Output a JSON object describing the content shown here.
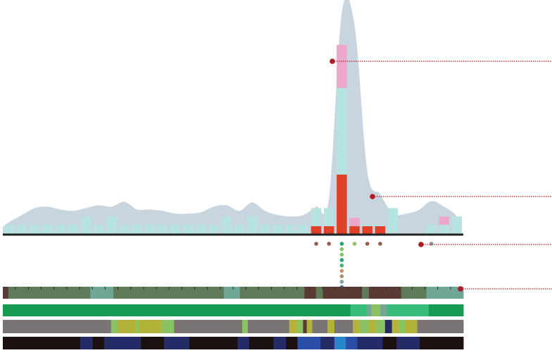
{
  "colors": {
    "density": "#c9d5de",
    "base_bar": "#b7e3e0",
    "mid_bar": "#eba8cc",
    "high_bar": "#e04028",
    "axis": "#222222",
    "pointer": "#b01c24",
    "track_brown": "#5a3a34",
    "track_green_dark": "#5e7a58",
    "track_teal": "#6fa696",
    "track_green": "#159a52",
    "track_green_light": "#38bd78",
    "track_grey": "#7a7474",
    "track_olive": "#b3b239",
    "track_lime": "#8ac264",
    "track_black": "#1b1111",
    "track_navy": "#252b66",
    "track_blue": "#2a4ea6",
    "track_sky": "#2a86c8"
  },
  "chart_data": {
    "type": "bar",
    "title": "",
    "xlabel": "",
    "ylabel": "",
    "grid": false,
    "legend": "none",
    "ylim": [
      0,
      320
    ],
    "n_bins": 36,
    "density_curve": [
      18,
      28,
      38,
      40,
      36,
      34,
      38,
      42,
      40,
      47,
      36,
      36,
      34,
      30,
      30,
      32,
      40,
      42,
      34,
      46,
      34,
      28,
      26,
      28,
      40,
      52,
      318,
      300,
      90,
      58,
      30,
      30,
      35,
      48,
      40,
      26
    ],
    "series": [
      {
        "name": "",
        "color_key": "base_bar",
        "values": [
          14,
          14,
          14,
          14,
          14,
          14,
          26,
          14,
          26,
          14,
          14,
          14,
          14,
          14,
          14,
          14,
          14,
          26,
          14,
          26,
          14,
          14,
          14,
          14,
          38,
          38,
          210,
          12,
          14,
          14,
          38,
          0,
          0,
          14,
          14,
          26
        ]
      },
      {
        "name": "",
        "color_key": "mid_bar",
        "values": [
          0,
          0,
          0,
          0,
          0,
          0,
          0,
          0,
          0,
          0,
          0,
          0,
          0,
          0,
          0,
          0,
          0,
          0,
          0,
          0,
          0,
          0,
          0,
          0,
          0,
          0,
          62,
          12,
          0,
          0,
          0,
          0,
          0,
          0,
          12,
          0
        ]
      },
      {
        "name": "",
        "color_key": "high_bar",
        "values": [
          0,
          0,
          0,
          0,
          0,
          0,
          0,
          0,
          0,
          0,
          0,
          0,
          0,
          0,
          0,
          0,
          0,
          0,
          0,
          0,
          0,
          0,
          0,
          0,
          12,
          12,
          86,
          12,
          12,
          12,
          0,
          0,
          0,
          0,
          0,
          0
        ]
      }
    ],
    "dot_markers": [
      {
        "bin": 24,
        "colors": [
          "#9a5a4a"
        ]
      },
      {
        "bin": 25,
        "colors": [
          "#9a5a4a"
        ]
      },
      {
        "bin": 26,
        "colors": [
          "#22a86a",
          "#8ac264",
          "#8ac264",
          "#22a86a",
          "#3cb878",
          "#c89468",
          "#b0926c",
          "#8aa09a",
          "#3a82b0"
        ]
      },
      {
        "bin": 27,
        "colors": [
          "#8ac264"
        ]
      },
      {
        "bin": 28,
        "colors": [
          "#9a5a4a"
        ]
      },
      {
        "bin": 29,
        "colors": [
          "#9a5a4a"
        ]
      },
      {
        "bin": 33,
        "colors": [
          "#7f9a8e"
        ]
      }
    ],
    "tracks": [
      {
        "segments": [
          {
            "f0": 0,
            "f1": 0.012,
            "c": "track_brown"
          },
          {
            "f0": 0.012,
            "f1": 0.19,
            "c": "track_green_dark"
          },
          {
            "f0": 0.19,
            "f1": 0.24,
            "c": "track_teal"
          },
          {
            "f0": 0.24,
            "f1": 0.48,
            "c": "track_green_dark"
          },
          {
            "f0": 0.48,
            "f1": 0.515,
            "c": "track_teal"
          },
          {
            "f0": 0.515,
            "f1": 0.655,
            "c": "track_green_dark"
          },
          {
            "f0": 0.655,
            "f1": 0.68,
            "c": "track_brown"
          },
          {
            "f0": 0.68,
            "f1": 0.695,
            "c": "track_green_dark"
          },
          {
            "f0": 0.695,
            "f1": 0.78,
            "c": "track_brown"
          },
          {
            "f0": 0.78,
            "f1": 0.795,
            "c": "track_green_dark"
          },
          {
            "f0": 0.795,
            "f1": 0.865,
            "c": "track_brown"
          },
          {
            "f0": 0.865,
            "f1": 0.92,
            "c": "track_green_dark"
          },
          {
            "f0": 0.92,
            "f1": 1,
            "c": "track_teal"
          }
        ]
      },
      {
        "segments": [
          {
            "f0": 0,
            "f1": 0.755,
            "c": "track_green"
          },
          {
            "f0": 0.755,
            "f1": 0.79,
            "c": "track_green_light"
          },
          {
            "f0": 0.79,
            "f1": 0.8,
            "c": "track_teal"
          },
          {
            "f0": 0.8,
            "f1": 0.82,
            "c": "track_lime"
          },
          {
            "f0": 0.82,
            "f1": 0.835,
            "c": "track_teal"
          },
          {
            "f0": 0.835,
            "f1": 0.925,
            "c": "track_green_light"
          },
          {
            "f0": 0.925,
            "f1": 1,
            "c": "track_green"
          }
        ]
      },
      {
        "segments": [
          {
            "f0": 0,
            "f1": 0.235,
            "c": "track_grey"
          },
          {
            "f0": 0.235,
            "f1": 0.25,
            "c": "track_lime"
          },
          {
            "f0": 0.25,
            "f1": 0.29,
            "c": "track_olive"
          },
          {
            "f0": 0.29,
            "f1": 0.295,
            "c": "track_lime"
          },
          {
            "f0": 0.295,
            "f1": 0.345,
            "c": "track_olive"
          },
          {
            "f0": 0.345,
            "f1": 0.372,
            "c": "track_lime"
          },
          {
            "f0": 0.372,
            "f1": 0.52,
            "c": "track_grey"
          },
          {
            "f0": 0.52,
            "f1": 0.532,
            "c": "track_lime"
          },
          {
            "f0": 0.532,
            "f1": 0.622,
            "c": "track_grey"
          },
          {
            "f0": 0.622,
            "f1": 0.64,
            "c": "track_olive"
          },
          {
            "f0": 0.64,
            "f1": 0.652,
            "c": "track_lime"
          },
          {
            "f0": 0.652,
            "f1": 0.66,
            "c": "track_brown"
          },
          {
            "f0": 0.66,
            "f1": 0.672,
            "c": "track_olive"
          },
          {
            "f0": 0.672,
            "f1": 0.705,
            "c": "track_grey"
          },
          {
            "f0": 0.705,
            "f1": 0.72,
            "c": "track_olive"
          },
          {
            "f0": 0.72,
            "f1": 0.76,
            "c": "track_grey"
          },
          {
            "f0": 0.76,
            "f1": 0.775,
            "c": "track_olive"
          },
          {
            "f0": 0.775,
            "f1": 0.795,
            "c": "track_lime"
          },
          {
            "f0": 0.795,
            "f1": 0.81,
            "c": "track_olive"
          },
          {
            "f0": 0.81,
            "f1": 0.83,
            "c": "track_lime"
          },
          {
            "f0": 0.83,
            "f1": 0.845,
            "c": "track_navy"
          },
          {
            "f0": 0.845,
            "f1": 0.86,
            "c": "track_olive"
          },
          {
            "f0": 0.86,
            "f1": 0.875,
            "c": "track_lime"
          },
          {
            "f0": 0.875,
            "f1": 0.9,
            "c": "track_olive"
          },
          {
            "f0": 0.9,
            "f1": 1,
            "c": "track_grey"
          }
        ]
      },
      {
        "segments": [
          {
            "f0": 0,
            "f1": 0.168,
            "c": "track_black"
          },
          {
            "f0": 0.168,
            "f1": 0.195,
            "c": "track_navy"
          },
          {
            "f0": 0.195,
            "f1": 0.22,
            "c": "track_black"
          },
          {
            "f0": 0.22,
            "f1": 0.3,
            "c": "track_navy"
          },
          {
            "f0": 0.3,
            "f1": 0.35,
            "c": "track_black"
          },
          {
            "f0": 0.35,
            "f1": 0.405,
            "c": "track_navy"
          },
          {
            "f0": 0.405,
            "f1": 0.51,
            "c": "track_black"
          },
          {
            "f0": 0.51,
            "f1": 0.535,
            "c": "track_navy"
          },
          {
            "f0": 0.535,
            "f1": 0.588,
            "c": "track_black"
          },
          {
            "f0": 0.588,
            "f1": 0.615,
            "c": "track_navy"
          },
          {
            "f0": 0.615,
            "f1": 0.64,
            "c": "track_black"
          },
          {
            "f0": 0.64,
            "f1": 0.69,
            "c": "track_blue"
          },
          {
            "f0": 0.69,
            "f1": 0.72,
            "c": "track_navy"
          },
          {
            "f0": 0.72,
            "f1": 0.745,
            "c": "track_sky"
          },
          {
            "f0": 0.745,
            "f1": 0.77,
            "c": "track_blue"
          },
          {
            "f0": 0.77,
            "f1": 0.825,
            "c": "track_navy"
          },
          {
            "f0": 0.825,
            "f1": 0.855,
            "c": "track_black"
          },
          {
            "f0": 0.855,
            "f1": 0.905,
            "c": "track_navy"
          },
          {
            "f0": 0.905,
            "f1": 1,
            "c": "track_black"
          }
        ]
      }
    ]
  }
}
